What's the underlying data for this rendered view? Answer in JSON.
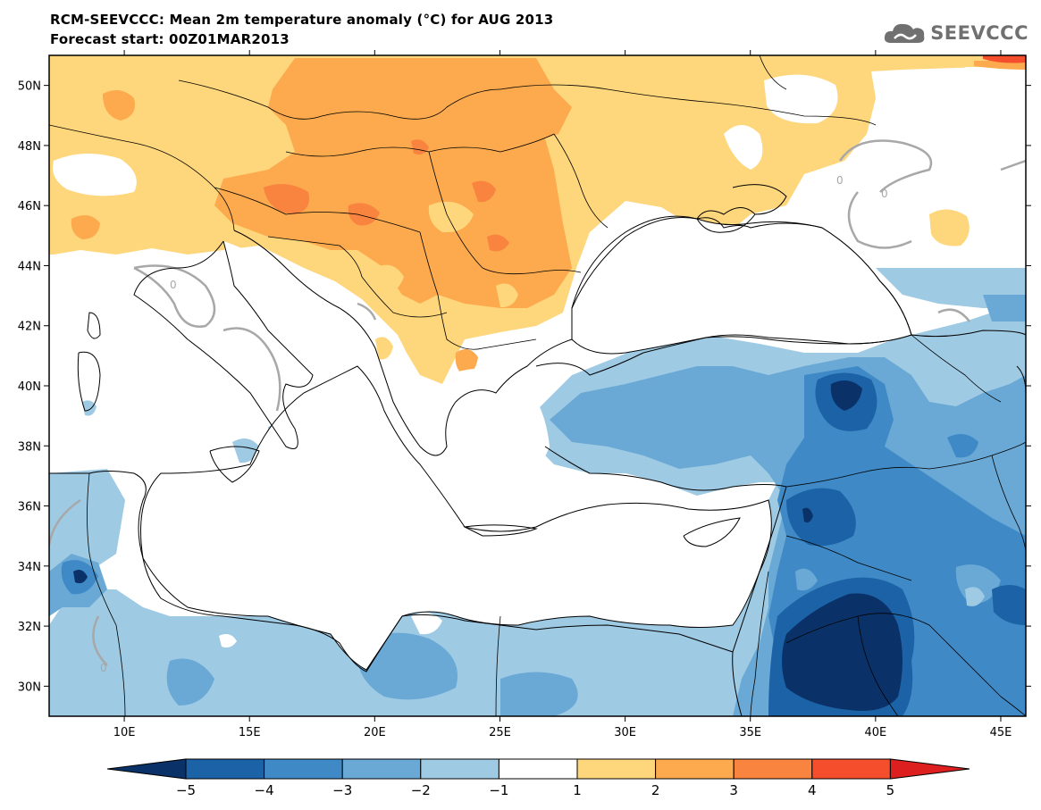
{
  "header": {
    "title": "RCM-SEEVCCC: Mean 2m temperature anomaly (°C) for AUG 2013",
    "subtitle": "Forecast start: 00Z01MAR2013",
    "logo_text": "SEEVCCC",
    "logo_icon": "cloud-icon"
  },
  "map": {
    "lon_range": [
      7,
      46
    ],
    "lat_range": [
      29,
      51
    ],
    "lon_ticks": [
      {
        "v": 10,
        "label": "10E"
      },
      {
        "v": 15,
        "label": "15E"
      },
      {
        "v": 20,
        "label": "20E"
      },
      {
        "v": 25,
        "label": "25E"
      },
      {
        "v": 30,
        "label": "30E"
      },
      {
        "v": 35,
        "label": "35E"
      },
      {
        "v": 40,
        "label": "40E"
      },
      {
        "v": 45,
        "label": "45E"
      }
    ],
    "lat_ticks": [
      {
        "v": 30,
        "label": "30N"
      },
      {
        "v": 32,
        "label": "32N"
      },
      {
        "v": 34,
        "label": "34N"
      },
      {
        "v": 36,
        "label": "36N"
      },
      {
        "v": 38,
        "label": "38N"
      },
      {
        "v": 40,
        "label": "40N"
      },
      {
        "v": 42,
        "label": "42N"
      },
      {
        "v": 44,
        "label": "44N"
      },
      {
        "v": 46,
        "label": "46N"
      },
      {
        "v": 48,
        "label": "48N"
      },
      {
        "v": 50,
        "label": "50N"
      }
    ],
    "contour_label": "0",
    "colors": {
      "warm1": "#fed67b",
      "warm2": "#fcaa4d",
      "warm3": "#f9843f",
      "warm4": "#f54e2c",
      "cool1": "#9ecae4",
      "cool2": "#6aa9d5",
      "cool3": "#3f8ac6",
      "cool4": "#1c62a6",
      "cool5": "#0a3268",
      "zero_contour": "#a8a8a8",
      "coastline": "#000000"
    }
  },
  "colorbar": {
    "labels": [
      "−5",
      "−4",
      "−3",
      "−2",
      "−1",
      "1",
      "2",
      "3",
      "4",
      "5"
    ],
    "low_cap_color": "#0a3268",
    "high_cap_color": "#dd1f1f",
    "segments": [
      "#1c62a6",
      "#3f8ac6",
      "#6aa9d5",
      "#9ecae4",
      "#ffffff",
      "#fed67b",
      "#fcaa4d",
      "#f9843f",
      "#f54e2c"
    ]
  }
}
